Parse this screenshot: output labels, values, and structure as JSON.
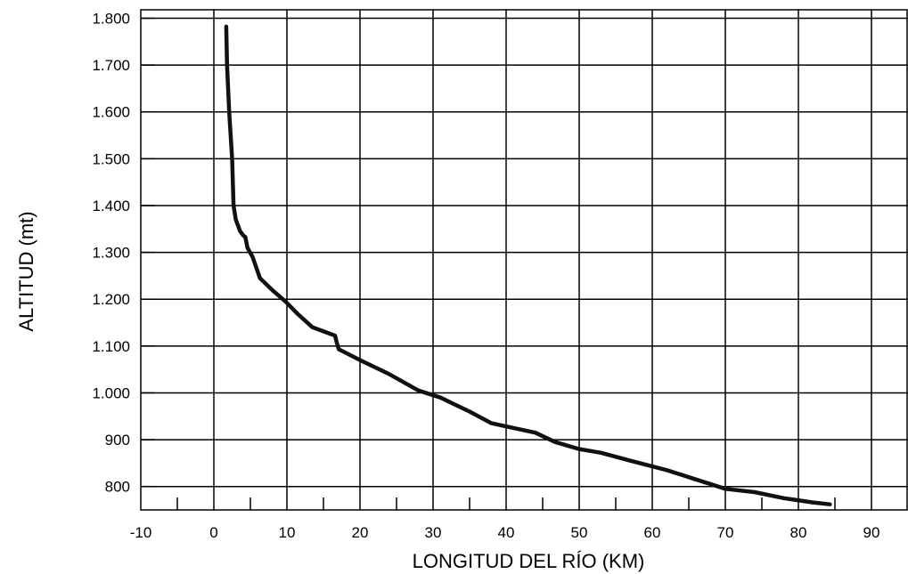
{
  "chart_data": {
    "type": "line",
    "title": "",
    "xlabel": "LONGITUD DEL RÍO (KM)",
    "ylabel": "ALTITUD (mt)",
    "xlim": [
      -10,
      95
    ],
    "ylim": [
      750,
      1800
    ],
    "x_ticks": [
      -10,
      0,
      10,
      20,
      30,
      40,
      50,
      60,
      70,
      80,
      90
    ],
    "x_tick_labels": [
      "-10",
      "0",
      "10",
      "20",
      "30",
      "40",
      "50",
      "60",
      "70",
      "80",
      "90"
    ],
    "y_ticks": [
      800,
      900,
      1000,
      1100,
      1200,
      1300,
      1400,
      1500,
      1600,
      1700,
      1800
    ],
    "y_tick_labels": [
      "800",
      "900",
      "1.000",
      "1.100",
      "1.200",
      "1.300",
      "1.400",
      "1.500",
      "1.600",
      "1.700",
      "1.800"
    ],
    "grid": true,
    "line_color": "#111111",
    "series": [
      {
        "x": [
          1.7,
          1.8,
          2.1,
          2.5,
          2.7,
          3.0,
          3.6,
          4.1,
          4.3,
          4.6,
          5.3,
          6.3,
          8.1,
          9.8,
          11.5,
          13.5,
          15.6,
          16.6,
          16.8,
          17.1,
          20.0,
          24.0,
          28.0,
          31.0,
          35.0,
          38.0,
          41.0,
          44.0,
          46.7,
          50.0,
          53.0,
          57.0,
          62.0,
          66.0,
          70.0,
          74.0,
          78.0,
          82.0,
          84.3
        ],
        "y": [
          1782,
          1700,
          1600,
          1500,
          1400,
          1370,
          1345,
          1335,
          1333,
          1310,
          1290,
          1245,
          1218,
          1195,
          1168,
          1140,
          1128,
          1122,
          1108,
          1093,
          1070,
          1040,
          1005,
          990,
          960,
          935,
          925,
          915,
          895,
          880,
          872,
          855,
          835,
          815,
          795,
          788,
          775,
          766,
          762
        ]
      }
    ]
  }
}
